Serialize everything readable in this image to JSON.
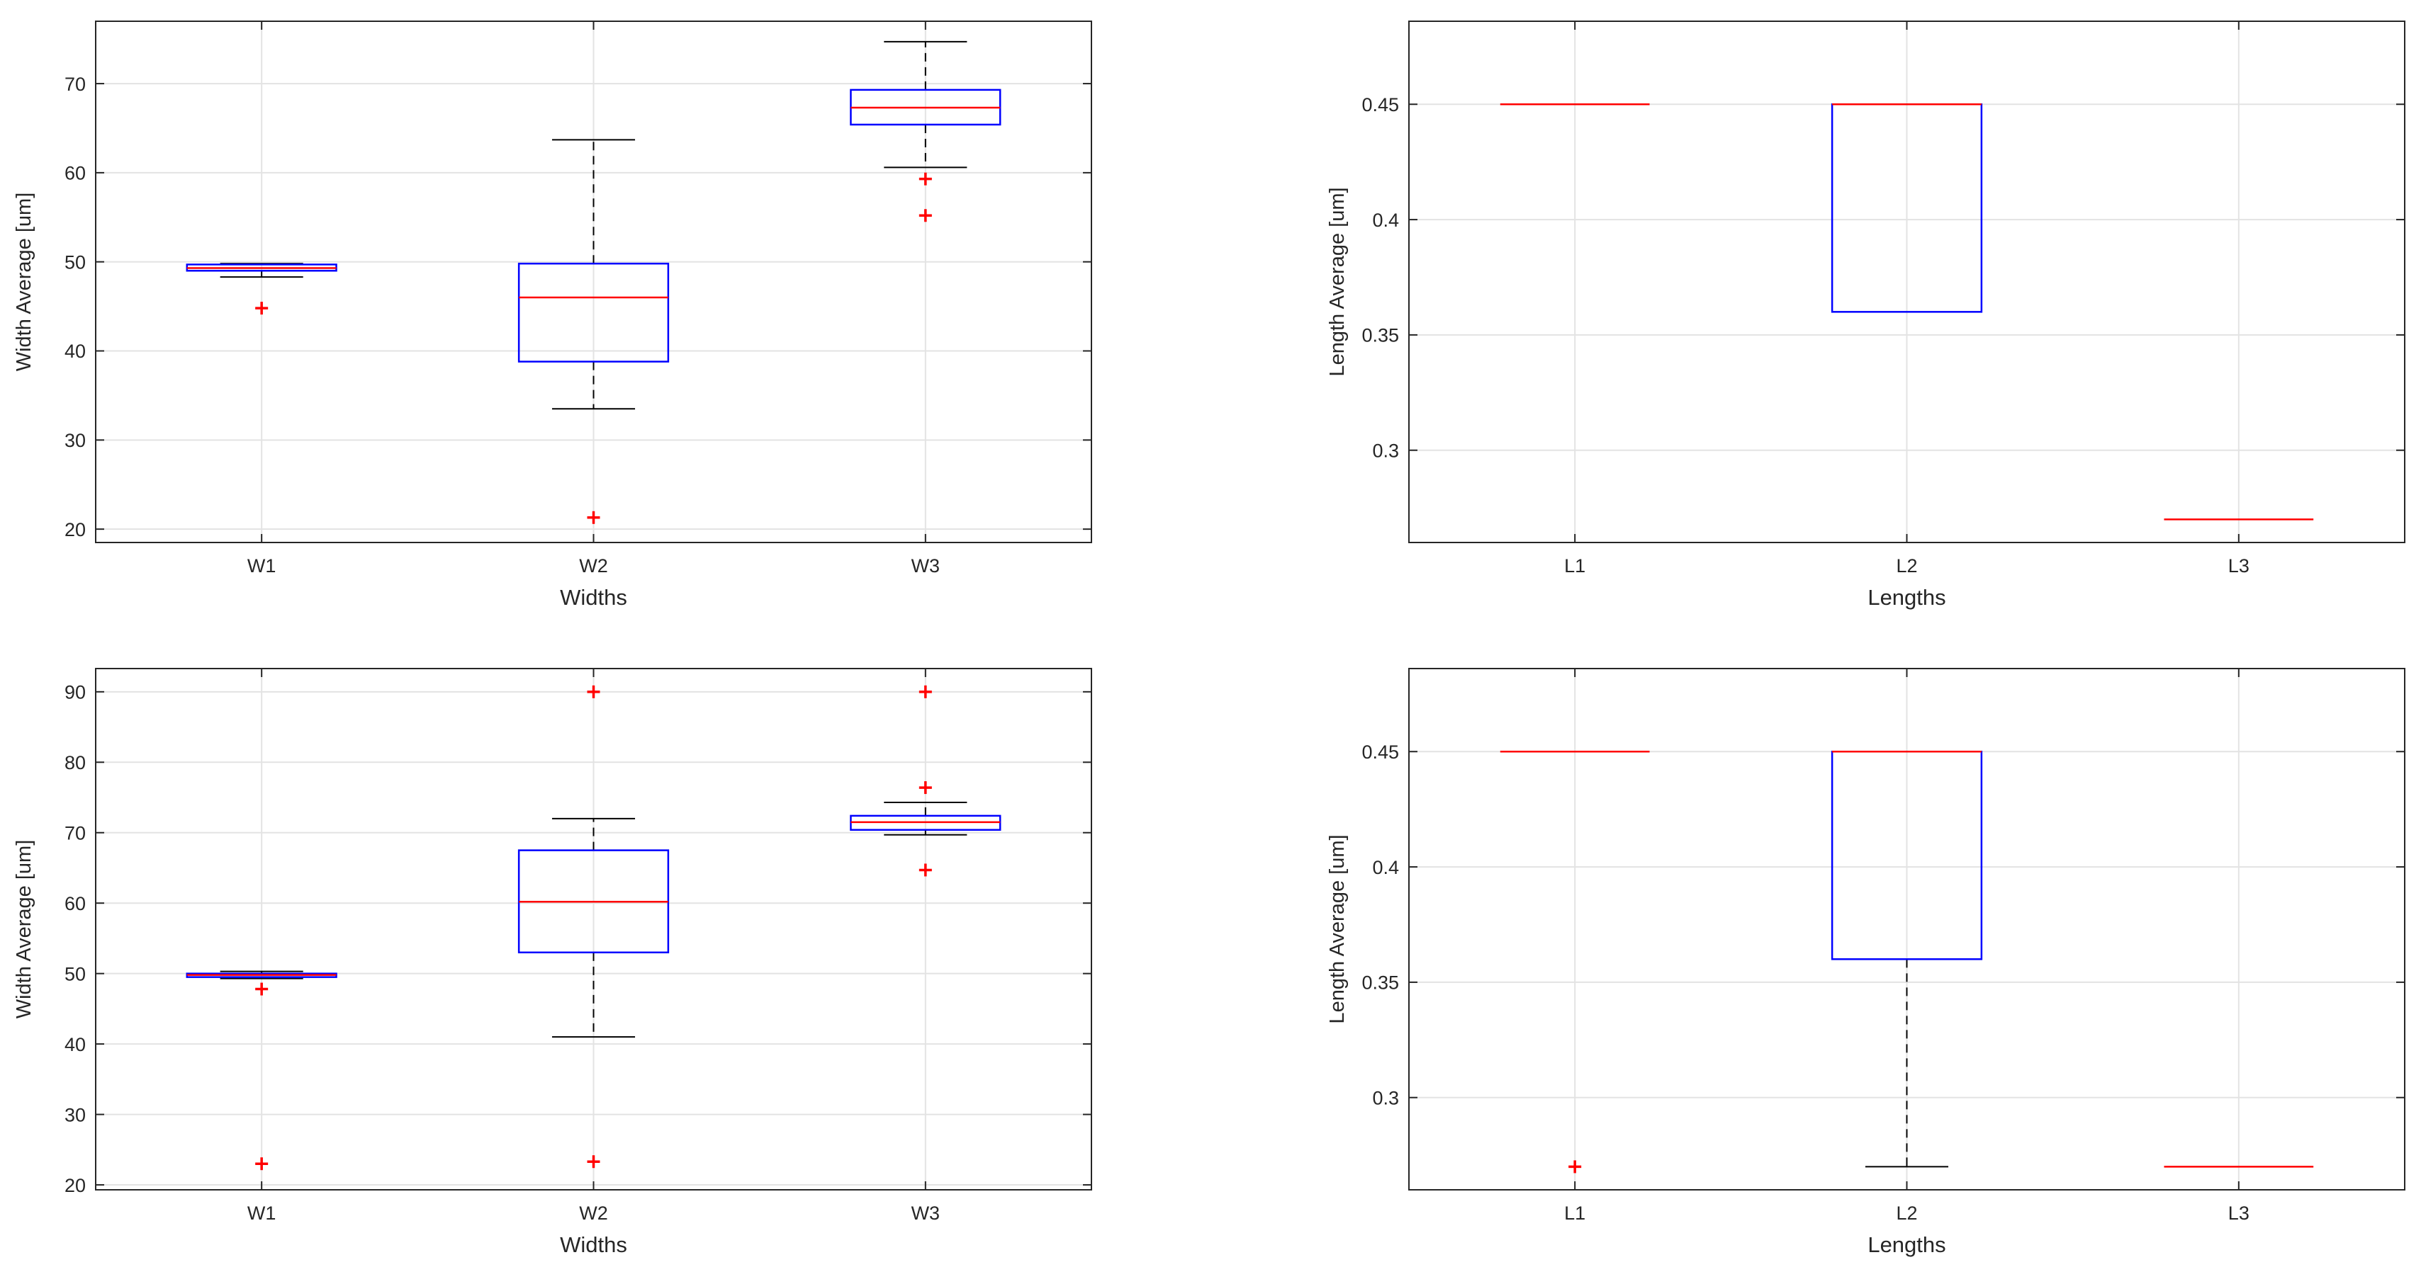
{
  "chart_data": [
    {
      "type": "box",
      "xlabel": "Widths",
      "ylabel": "Width Average  [um]",
      "ylim": [
        18.5,
        77
      ],
      "yticks": [
        20,
        30,
        40,
        50,
        60,
        70
      ],
      "categories": [
        "W1",
        "W2",
        "W3"
      ],
      "boxes": [
        {
          "category": "W1",
          "whisker_low": 48.3,
          "q1": 49.0,
          "median": 49.3,
          "q3": 49.7,
          "whisker_high": 49.8,
          "outliers": [
            44.8
          ]
        },
        {
          "category": "W2",
          "whisker_low": 33.5,
          "q1": 38.8,
          "median": 46.0,
          "q3": 49.8,
          "whisker_high": 63.7,
          "outliers": [
            21.3
          ]
        },
        {
          "category": "W3",
          "whisker_low": 60.6,
          "q1": 65.4,
          "median": 67.3,
          "q3": 69.3,
          "whisker_high": 74.7,
          "outliers": [
            59.3,
            55.2
          ]
        }
      ]
    },
    {
      "type": "box",
      "xlabel": "Lengths",
      "ylabel": "Length Average  [um]",
      "ylim": [
        0.26,
        0.486
      ],
      "yticks": [
        0.3,
        0.35,
        0.4,
        0.45
      ],
      "categories": [
        "L1",
        "L2",
        "L3"
      ],
      "boxes": [
        {
          "category": "L1",
          "whisker_low": 0.45,
          "q1": 0.45,
          "median": 0.45,
          "q3": 0.45,
          "whisker_high": 0.45,
          "outliers": []
        },
        {
          "category": "L2",
          "whisker_low": 0.36,
          "q1": 0.36,
          "median": 0.45,
          "q3": 0.45,
          "whisker_high": 0.45,
          "outliers": []
        },
        {
          "category": "L3",
          "whisker_low": 0.27,
          "q1": 0.27,
          "median": 0.27,
          "q3": 0.27,
          "whisker_high": 0.27,
          "outliers": []
        }
      ]
    },
    {
      "type": "box",
      "xlabel": "Widths",
      "ylabel": "Width Average [um]",
      "ylim": [
        19.3,
        93.3
      ],
      "yticks": [
        20,
        30,
        40,
        50,
        60,
        70,
        80,
        90
      ],
      "categories": [
        "W1",
        "W2",
        "W3"
      ],
      "boxes": [
        {
          "category": "W1",
          "whisker_low": 49.3,
          "q1": 49.5,
          "median": 49.8,
          "q3": 50.0,
          "whisker_high": 50.3,
          "outliers": [
            47.8,
            23.0
          ]
        },
        {
          "category": "W2",
          "whisker_low": 41.0,
          "q1": 53.0,
          "median": 60.2,
          "q3": 67.5,
          "whisker_high": 72.0,
          "outliers": [
            90.0,
            23.3
          ]
        },
        {
          "category": "W3",
          "whisker_low": 69.7,
          "q1": 70.4,
          "median": 71.5,
          "q3": 72.4,
          "whisker_high": 74.3,
          "outliers": [
            90.0,
            76.4,
            64.7
          ]
        }
      ]
    },
    {
      "type": "box",
      "xlabel": "Lengths",
      "ylabel": "Length Average [um]",
      "ylim": [
        0.26,
        0.486
      ],
      "yticks": [
        0.3,
        0.35,
        0.4,
        0.45
      ],
      "categories": [
        "L1",
        "L2",
        "L3"
      ],
      "boxes": [
        {
          "category": "L1",
          "whisker_low": 0.45,
          "q1": 0.45,
          "median": 0.45,
          "q3": 0.45,
          "whisker_high": 0.45,
          "outliers": [
            0.27
          ]
        },
        {
          "category": "L2",
          "whisker_low": 0.27,
          "q1": 0.36,
          "median": 0.45,
          "q3": 0.45,
          "whisker_high": 0.45,
          "outliers": []
        },
        {
          "category": "L3",
          "whisker_low": 0.27,
          "q1": 0.27,
          "median": 0.27,
          "q3": 0.27,
          "whisker_high": 0.27,
          "outliers": []
        }
      ]
    }
  ]
}
